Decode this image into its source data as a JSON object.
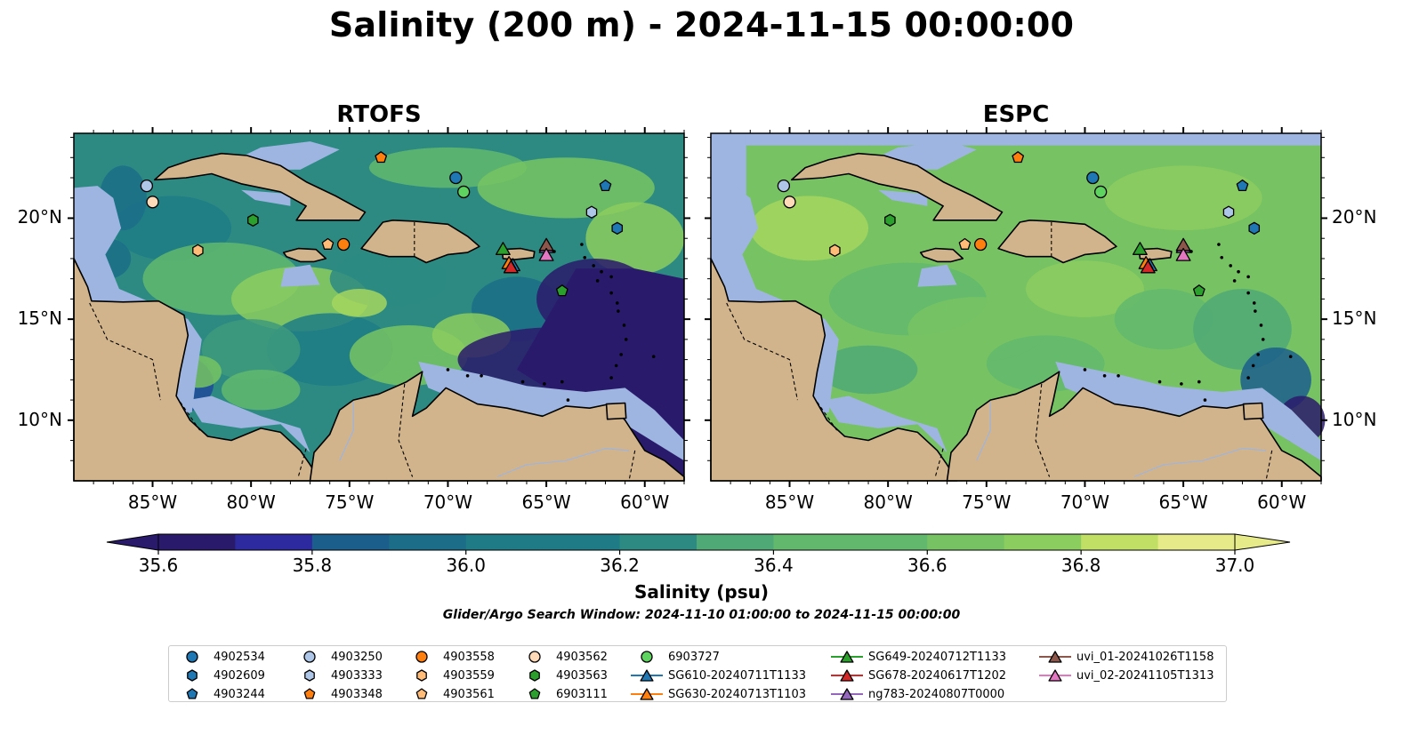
{
  "figure": {
    "title": "Salinity (200 m) - 2024-11-15 00:00:00",
    "colorbar_label": "Salinity (psu)",
    "search_window": "Glider/Argo Search Window: 2024-11-10 01:00:00 to 2024-11-15 00:00:00"
  },
  "colors": {
    "land": "#d2b48c",
    "shallow_water": "#9db5e0",
    "colormap": [
      "#2a1a6b",
      "#2c2a9e",
      "#1e4a9a",
      "#1b5e8c",
      "#1c6d87",
      "#1f7c86",
      "#2c8a82",
      "#3e9a7c",
      "#4fa976",
      "#62b86c",
      "#77c363",
      "#8ccd5f",
      "#a4d65e",
      "#c0df64",
      "#e6ea88"
    ]
  },
  "chart_data": {
    "type": "map",
    "variable": "Salinity at 200 m",
    "units": "psu",
    "colorbar": {
      "min": 35.6,
      "max": 37.0,
      "ticks": [
        35.6,
        35.8,
        36.0,
        36.2,
        36.4,
        36.6,
        36.8,
        37.0
      ],
      "tick_labels": [
        "35.6",
        "35.8",
        "36.0",
        "36.2",
        "36.4",
        "36.6",
        "36.8",
        "37.0"
      ],
      "levels": 16,
      "extend": "both"
    },
    "extent": {
      "lon": [
        -89,
        -58
      ],
      "lat": [
        7,
        24.2
      ]
    },
    "lon_ticks": [
      -85,
      -80,
      -75,
      -70,
      -65,
      -60
    ],
    "lon_tick_labels": [
      "85°W",
      "80°W",
      "75°W",
      "70°W",
      "65°W",
      "60°W"
    ],
    "lat_ticks": [
      10,
      15,
      20
    ],
    "lat_tick_labels": [
      "10°N",
      "15°N",
      "20°N"
    ],
    "panels": [
      {
        "title": "RTOFS",
        "lat_labels": "left",
        "deep_water_salinity": 35.6,
        "open_sea_salinity": 36.25
      },
      {
        "title": "ESPC",
        "lat_labels": "right",
        "deep_water_salinity": 35.6,
        "open_sea_salinity": 36.6
      }
    ],
    "observations": [
      {
        "name": "4902534",
        "kind": "argo",
        "marker": "circle",
        "color": "#1f77b4",
        "lon": -69.6,
        "lat": 22.0
      },
      {
        "name": "4902609",
        "kind": "argo",
        "marker": "hexagon",
        "color": "#1f77b4",
        "lon": -61.4,
        "lat": 19.5
      },
      {
        "name": "4903244",
        "kind": "argo",
        "marker": "pentagon",
        "color": "#1f77b4",
        "lon": -62.0,
        "lat": 21.6
      },
      {
        "name": "4903250",
        "kind": "argo",
        "marker": "circle",
        "color": "#aec7e8",
        "lon": -85.3,
        "lat": 21.6
      },
      {
        "name": "4903333",
        "kind": "argo",
        "marker": "hexagon",
        "color": "#aec7e8",
        "lon": -62.7,
        "lat": 20.3
      },
      {
        "name": "4903348",
        "kind": "argo",
        "marker": "pentagon",
        "color": "#ff7f0e",
        "lon": -73.4,
        "lat": 23.0
      },
      {
        "name": "4903558",
        "kind": "argo",
        "marker": "circle",
        "color": "#ff7f0e",
        "lon": -75.3,
        "lat": 18.7
      },
      {
        "name": "4903559",
        "kind": "argo",
        "marker": "hexagon",
        "color": "#ffbb78",
        "lon": -82.7,
        "lat": 18.4
      },
      {
        "name": "4903561",
        "kind": "argo",
        "marker": "pentagon",
        "color": "#ffbb78",
        "lon": -76.1,
        "lat": 18.7
      },
      {
        "name": "4903562",
        "kind": "argo",
        "marker": "circle",
        "color": "#ffdab9",
        "lon": -85.0,
        "lat": 20.8
      },
      {
        "name": "4903563",
        "kind": "argo",
        "marker": "hexagon",
        "color": "#2ca02c",
        "lon": -79.9,
        "lat": 19.9
      },
      {
        "name": "6903111",
        "kind": "argo",
        "marker": "pentagon",
        "color": "#2ca02c",
        "lon": -64.2,
        "lat": 16.4
      },
      {
        "name": "6903727",
        "kind": "argo",
        "marker": "circle",
        "color": "#5fd35f",
        "lon": -69.2,
        "lat": 21.3
      },
      {
        "name": "SG610-20240711T1133",
        "kind": "glider",
        "marker": "triangle",
        "color": "#1f77b4",
        "lon": -66.7,
        "lat": 17.7
      },
      {
        "name": "SG630-20240713T1103",
        "kind": "glider",
        "marker": "triangle",
        "color": "#ff7f0e",
        "lon": -66.9,
        "lat": 17.8
      },
      {
        "name": "SG649-20240712T1133",
        "kind": "glider",
        "marker": "triangle",
        "color": "#2ca02c",
        "lon": -67.2,
        "lat": 18.5
      },
      {
        "name": "SG678-20240617T1202",
        "kind": "glider",
        "marker": "triangle",
        "color": "#d62728",
        "lon": -66.8,
        "lat": 17.6
      },
      {
        "name": "ng783-20240807T0000",
        "kind": "glider",
        "marker": "triangle",
        "color": "#9467bd",
        "lon": -65.0,
        "lat": 18.6
      },
      {
        "name": "uvi_01-20241026T1158",
        "kind": "glider",
        "marker": "triangle",
        "color": "#8c564b",
        "lon": -65.0,
        "lat": 18.7
      },
      {
        "name": "uvi_02-20241105T1313",
        "kind": "glider",
        "marker": "triangle",
        "color": "#e377c2",
        "lon": -65.0,
        "lat": 18.2
      }
    ]
  },
  "legend": {
    "columns": [
      [
        "4902534",
        "4902609",
        "4903244"
      ],
      [
        "4903250",
        "4903333",
        "4903348"
      ],
      [
        "4903558",
        "4903559",
        "4903561"
      ],
      [
        "4903562",
        "4903563",
        "6903111"
      ],
      [
        "6903727",
        "SG610-20240711T1133",
        "SG630-20240713T1103"
      ],
      [
        "SG649-20240712T1133",
        "SG678-20240617T1202",
        "ng783-20240807T0000"
      ],
      [
        "uvi_01-20241026T1158",
        "uvi_02-20241105T1313"
      ]
    ]
  }
}
